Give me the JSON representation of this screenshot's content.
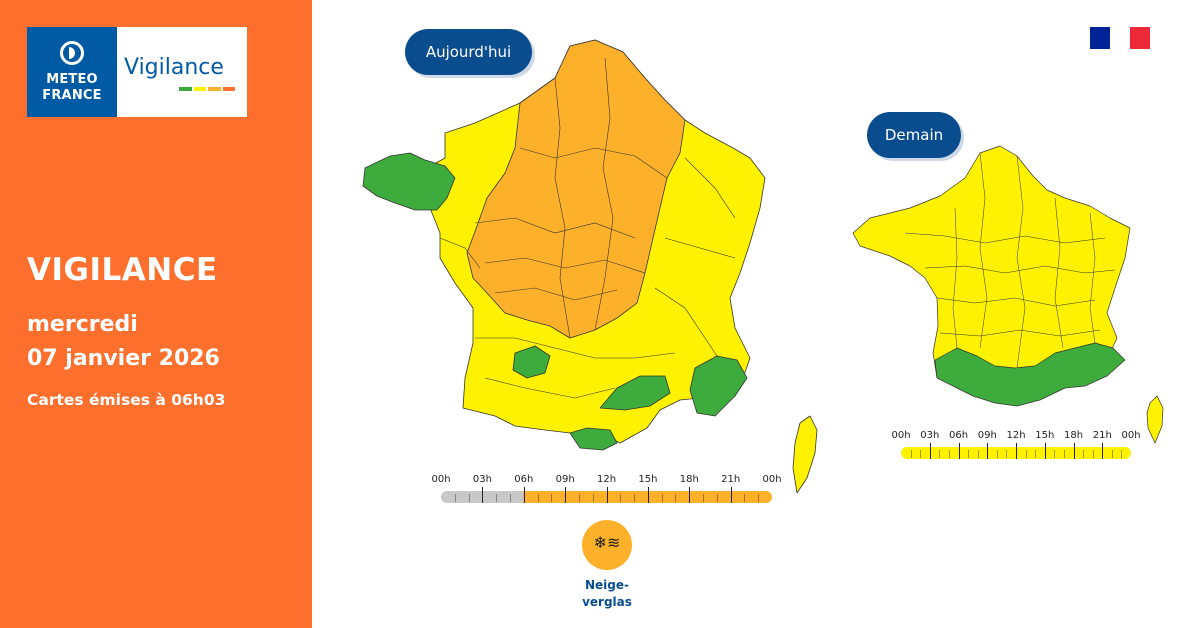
{
  "brand": {
    "meteo_line1": "METEO",
    "meteo_line2": "FRANCE",
    "vigilance_word": "Vigilance",
    "bar_colors": [
      "#3dac3c",
      "#fef200",
      "#fdb12a",
      "#fd6f2d",
      "#e2001a"
    ]
  },
  "sidebar": {
    "title": "VIGILANCE",
    "day": "mercredi",
    "date": "07 janvier 2026",
    "issued": "Cartes émises à 06h03",
    "background": "#fd6f2d"
  },
  "maps": {
    "today_label": "Aujourd'hui",
    "tomorrow_label": "Demain",
    "colors": {
      "green": "#3dac3c",
      "yellow": "#fef200",
      "orange": "#fdb12a",
      "border": "#333333"
    },
    "today_regions": {
      "north_center": "orange",
      "east": "yellow",
      "west": "yellow",
      "south": "yellow",
      "brittany": "green",
      "tarn": "green",
      "gard": "green",
      "provence": "green",
      "roussillon": "green",
      "corsica": "yellow"
    },
    "tomorrow_regions": {
      "mainland": "yellow",
      "south_belt": "green",
      "corsica": "yellow"
    }
  },
  "timeline_today": {
    "labels": [
      "00h",
      "03h",
      "06h",
      "09h",
      "12h",
      "15h",
      "18h",
      "21h",
      "00h"
    ],
    "past_until_fraction": 0.25,
    "past_color": "#c8c8c8",
    "level_color": "#fdb12a"
  },
  "timeline_tomorrow": {
    "labels": [
      "00h",
      "03h",
      "06h",
      "09h",
      "12h",
      "15h",
      "18h",
      "21h",
      "00h"
    ],
    "level_color": "#fef200"
  },
  "phenomenon": {
    "icon": "snow-ice-icon",
    "glyph": "❄≋",
    "label_line1": "Neige-",
    "label_line2": "verglas",
    "color": "#fdb12a"
  },
  "flag_colors": [
    "#002395",
    "#ffffff",
    "#ed2939"
  ]
}
